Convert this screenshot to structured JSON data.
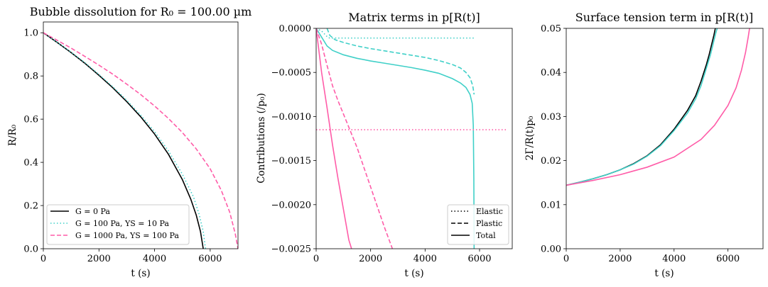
{
  "chart_data": [
    {
      "type": "line",
      "title": "Bubble dissolution for R₀ = 100.00 µm",
      "xlabel": "t (s)",
      "ylabel": "R/R₀",
      "xlim": [
        0,
        7000
      ],
      "ylim": [
        0,
        1.05
      ],
      "xticks": [
        0,
        2000,
        4000,
        6000
      ],
      "xtick_labels": [
        "0",
        "2000",
        "4000",
        "6000"
      ],
      "yticks": [
        0,
        0.2,
        0.4,
        0.6,
        0.8,
        1.0
      ],
      "ytick_labels": [
        "0.0",
        "0.2",
        "0.4",
        "0.6",
        "0.8",
        "1.0"
      ],
      "grid": false,
      "legend_position": "bottom-left",
      "series": [
        {
          "name": "G = 0 Pa",
          "color": "#000000",
          "style": "solid",
          "x": [
            0,
            500,
            1000,
            1500,
            2000,
            2500,
            3000,
            3500,
            4000,
            4500,
            5000,
            5300,
            5500,
            5650,
            5750
          ],
          "y": [
            1.0,
            0.955,
            0.908,
            0.858,
            0.803,
            0.745,
            0.681,
            0.611,
            0.531,
            0.437,
            0.32,
            0.23,
            0.155,
            0.08,
            0.0
          ]
        },
        {
          "name": "G = 100 Pa, YS = 10 Pa",
          "color": "#40d0c8",
          "style": "dotted",
          "x": [
            0,
            500,
            1000,
            1500,
            2000,
            2500,
            3000,
            3500,
            4000,
            4500,
            5000,
            5400,
            5600,
            5750,
            5830
          ],
          "y": [
            1.0,
            0.956,
            0.91,
            0.861,
            0.807,
            0.75,
            0.687,
            0.619,
            0.542,
            0.453,
            0.345,
            0.24,
            0.16,
            0.08,
            0.0
          ]
        },
        {
          "name": "G = 1000 Pa, YS = 100 Pa",
          "color": "#ff5ca8",
          "style": "dashed",
          "x": [
            0,
            500,
            1000,
            1500,
            2000,
            2500,
            3000,
            3500,
            4000,
            4500,
            5000,
            5500,
            6000,
            6400,
            6700,
            6900,
            7000
          ],
          "y": [
            1.0,
            0.965,
            0.929,
            0.89,
            0.85,
            0.808,
            0.762,
            0.714,
            0.661,
            0.603,
            0.538,
            0.462,
            0.37,
            0.27,
            0.17,
            0.07,
            0.0
          ]
        }
      ]
    },
    {
      "type": "line",
      "title": "Matrix terms in p[R(t)]",
      "xlabel": "t (s)",
      "ylabel": "Contributions (/p₀)",
      "xlim": [
        0,
        7200
      ],
      "ylim": [
        -0.0025,
        0.0
      ],
      "xticks": [
        0,
        2000,
        4000,
        6000
      ],
      "xtick_labels": [
        "0",
        "2000",
        "4000",
        "6000"
      ],
      "yticks": [
        0,
        -0.0005,
        -0.001,
        -0.0015,
        -0.002,
        -0.0025
      ],
      "ytick_labels": [
        "0.0000",
        "−0.0005",
        "−0.0010",
        "−0.0015",
        "−0.0020",
        "−0.0025"
      ],
      "grid": false,
      "legend_position": "bottom-right",
      "legend": [
        {
          "name": "Elastic",
          "style": "dotted"
        },
        {
          "name": "Plastic",
          "style": "dashed"
        },
        {
          "name": "Total",
          "style": "solid"
        }
      ],
      "series": [
        {
          "group": "cyan",
          "kind": "Elastic",
          "color": "#40d0c8",
          "style": "dotted",
          "x": [
            0,
            200,
            420,
            500,
            1000,
            3000,
            5000,
            5800
          ],
          "y": [
            0.0,
            -3e-05,
            -0.0001,
            -0.00011,
            -0.00011,
            -0.00011,
            -0.00011,
            -0.00011
          ]
        },
        {
          "group": "cyan",
          "kind": "Plastic",
          "color": "#40d0c8",
          "style": "dashed",
          "x": [
            400,
            500,
            700,
            1000,
            1500,
            2000,
            2500,
            3000,
            3500,
            4000,
            4500,
            5000,
            5300,
            5500,
            5650,
            5750,
            5800
          ],
          "y": [
            0.0,
            -8e-05,
            -0.00013,
            -0.00016,
            -0.0002,
            -0.00023,
            -0.000255,
            -0.00028,
            -0.000305,
            -0.00033,
            -0.000365,
            -0.00041,
            -0.00045,
            -0.0005,
            -0.00056,
            -0.00065,
            -0.00075
          ]
        },
        {
          "group": "cyan",
          "kind": "Total",
          "color": "#40d0c8",
          "style": "solid",
          "x": [
            0,
            200,
            400,
            600,
            1000,
            1500,
            2000,
            2500,
            3000,
            3500,
            4000,
            4500,
            5000,
            5300,
            5500,
            5650,
            5730,
            5770,
            5790,
            5800
          ],
          "y": [
            0.0,
            -0.0001,
            -0.0002,
            -0.00025,
            -0.0003,
            -0.00034,
            -0.00037,
            -0.000395,
            -0.00042,
            -0.000445,
            -0.000475,
            -0.00051,
            -0.00057,
            -0.00062,
            -0.00067,
            -0.00075,
            -0.00085,
            -0.0011,
            -0.0017,
            -0.0025
          ]
        },
        {
          "group": "pink",
          "kind": "Elastic",
          "color": "#ff5ca8",
          "style": "dotted",
          "x": [
            0,
            7000
          ],
          "y": [
            -0.00115,
            -0.00115
          ]
        },
        {
          "group": "pink",
          "kind": "Plastic",
          "color": "#ff5ca8",
          "style": "dashed",
          "x": [
            0,
            200,
            400,
            600,
            800,
            1000,
            1500,
            2000,
            2500,
            2800
          ],
          "y": [
            0.0,
            -0.00018,
            -0.00042,
            -0.00065,
            -0.00082,
            -0.00097,
            -0.00135,
            -0.0018,
            -0.00225,
            -0.0025
          ]
        },
        {
          "group": "pink",
          "kind": "Total",
          "color": "#ff5ca8",
          "style": "solid",
          "x": [
            0,
            100,
            200,
            400,
            600,
            800,
            1000,
            1200,
            1300
          ],
          "y": [
            0.0,
            -0.00025,
            -0.0005,
            -0.0009,
            -0.00132,
            -0.0017,
            -0.00205,
            -0.0024,
            -0.0025
          ]
        }
      ]
    },
    {
      "type": "line",
      "title": "Surface tension term in p[R(t)]",
      "xlabel": "t (s)",
      "ylabel": "2Γ/R(t)p₀",
      "xlim": [
        0,
        7300
      ],
      "ylim": [
        0,
        0.05
      ],
      "xticks": [
        0,
        2000,
        4000,
        6000
      ],
      "xtick_labels": [
        "0",
        "2000",
        "4000",
        "6000"
      ],
      "yticks": [
        0,
        0.01,
        0.02,
        0.03,
        0.04,
        0.05
      ],
      "ytick_labels": [
        "0.00",
        "0.01",
        "0.02",
        "0.03",
        "0.04",
        "0.05"
      ],
      "grid": false,
      "series": [
        {
          "color": "#000000",
          "style": "solid",
          "x": [
            0,
            500,
            1000,
            1500,
            2000,
            2500,
            3000,
            3500,
            4000,
            4500,
            4800,
            5000,
            5200,
            5300,
            5400,
            5480,
            5530
          ],
          "y": [
            0.0144,
            0.0151,
            0.0159,
            0.0168,
            0.0179,
            0.0193,
            0.0211,
            0.0236,
            0.0271,
            0.0314,
            0.0347,
            0.038,
            0.0418,
            0.044,
            0.0465,
            0.0485,
            0.05
          ]
        },
        {
          "color": "#40d0c8",
          "style": "solid",
          "x": [
            0,
            500,
            1000,
            1500,
            2000,
            2500,
            3000,
            3500,
            4000,
            4500,
            4800,
            5000,
            5200,
            5350,
            5450,
            5550,
            5600
          ],
          "y": [
            0.0144,
            0.0151,
            0.0159,
            0.0168,
            0.0179,
            0.0192,
            0.021,
            0.0234,
            0.0268,
            0.0308,
            0.034,
            0.037,
            0.041,
            0.044,
            0.0465,
            0.049,
            0.05
          ]
        },
        {
          "color": "#ff5ca8",
          "style": "solid",
          "x": [
            0,
            1000,
            2000,
            3000,
            4000,
            5000,
            5500,
            6000,
            6300,
            6500,
            6650,
            6750,
            6800
          ],
          "y": [
            0.0144,
            0.0155,
            0.0168,
            0.0185,
            0.0208,
            0.0248,
            0.028,
            0.0325,
            0.0365,
            0.0405,
            0.0445,
            0.048,
            0.05
          ]
        }
      ]
    }
  ]
}
